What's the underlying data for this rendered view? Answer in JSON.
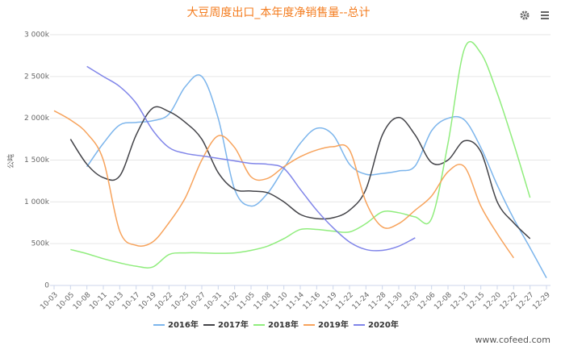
{
  "chart_data": {
    "type": "line",
    "title": "大豆周度出口_本年度净销售量--总计",
    "y_label": "公吨",
    "watermark": "www.cofeed.com",
    "categories": [
      "10-03",
      "10-05",
      "10-08",
      "10-11",
      "10-13",
      "10-17",
      "10-19",
      "10-22",
      "10-25",
      "10-27",
      "10-31",
      "11-02",
      "11-05",
      "11-08",
      "11-10",
      "11-14",
      "11-16",
      "11-19",
      "11-22",
      "11-24",
      "11-28",
      "11-30",
      "12-03",
      "12-06",
      "12-08",
      "12-13",
      "12-15",
      "12-20",
      "12-22",
      "12-27",
      "12-29"
    ],
    "series": [
      {
        "name": "2016年",
        "color": "#7cb5ec",
        "values": [
          null,
          null,
          1420,
          1700,
          1920,
          1950,
          1970,
          2050,
          2380,
          2500,
          2000,
          1150,
          950,
          1100,
          1400,
          1700,
          1880,
          1800,
          1450,
          1330,
          1340,
          1370,
          1430,
          1850,
          2000,
          1980,
          1650,
          1200,
          800,
          450,
          90
        ]
      },
      {
        "name": "2017年",
        "color": "#434348",
        "values": [
          null,
          1750,
          1450,
          1290,
          1310,
          1800,
          2120,
          2080,
          1950,
          1750,
          1350,
          1150,
          1130,
          1110,
          1000,
          850,
          800,
          810,
          900,
          1150,
          1800,
          2010,
          1800,
          1470,
          1500,
          1730,
          1600,
          1000,
          750,
          560,
          null
        ]
      },
      {
        "name": "2018年",
        "color": "#90ed7d",
        "values": [
          null,
          430,
          380,
          320,
          270,
          230,
          220,
          370,
          390,
          390,
          385,
          390,
          420,
          470,
          560,
          670,
          670,
          650,
          640,
          740,
          880,
          870,
          820,
          800,
          1700,
          2830,
          2780,
          2300,
          1700,
          1050,
          null
        ]
      },
      {
        "name": "2019年",
        "color": "#f7a35c",
        "values": [
          2090,
          1980,
          1820,
          1500,
          650,
          480,
          520,
          750,
          1050,
          1500,
          1790,
          1650,
          1300,
          1280,
          1420,
          1540,
          1620,
          1660,
          1620,
          1000,
          700,
          740,
          900,
          1070,
          1360,
          1420,
          950,
          620,
          330,
          null,
          null
        ]
      },
      {
        "name": "2020年",
        "color": "#8085e9",
        "values": [
          null,
          null,
          2620,
          2500,
          2380,
          2180,
          1860,
          1650,
          1580,
          1550,
          1520,
          1490,
          1460,
          1450,
          1400,
          1150,
          900,
          690,
          520,
          430,
          420,
          470,
          570,
          null,
          null,
          null,
          null,
          null,
          null,
          null,
          null
        ]
      }
    ],
    "ylim": [
      0,
      3000
    ],
    "yticks": [
      0,
      {
        "value": 500,
        "label": "500k"
      },
      {
        "value": 1000,
        "label": "1 000k"
      },
      {
        "value": 1500,
        "label": "1 500k"
      },
      {
        "value": 2000,
        "label": "2 000k"
      },
      {
        "value": 2500,
        "label": "2 500k"
      },
      {
        "value": 3000,
        "label": "3 000k"
      }
    ],
    "grid": true,
    "legend": "bottom"
  }
}
